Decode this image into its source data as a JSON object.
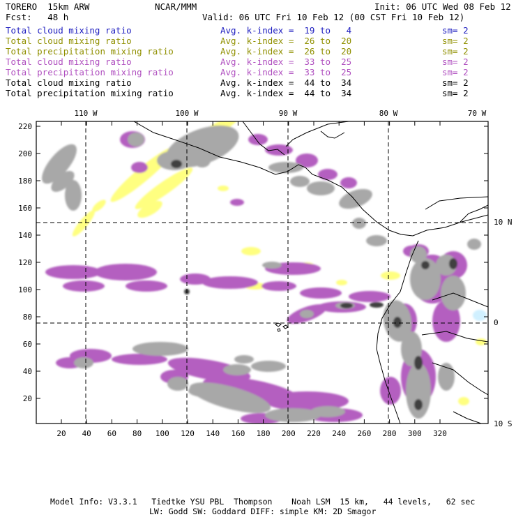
{
  "header": {
    "model": "TORERO  15km ARW",
    "org": "NCAR/MMM",
    "init": "Init: 06 UTC Wed 08 Feb 12",
    "fcst_label": "Fcst:   48 h",
    "valid": "Valid: 06 UTC Fri 10 Feb 12 (00 CST Fri 10 Feb 12)"
  },
  "legend": [
    {
      "field": "Total cloud mixing ratio",
      "kindex": "Avg. k-index =  19 to   4",
      "sm": "sm= 2",
      "color": "#2020c0"
    },
    {
      "field": "Total cloud mixing ratio",
      "kindex": "Avg. k-index =  26 to  20",
      "sm": "sm= 2",
      "color": "#909000"
    },
    {
      "field": "Total precipitation mixing ratio",
      "kindex": "Avg. k-index =  26 to  20",
      "sm": "sm= 2",
      "color": "#909000"
    },
    {
      "field": "Total cloud mixing ratio",
      "kindex": "Avg. k-index =  33 to  25",
      "sm": "sm= 2",
      "color": "#b050c0"
    },
    {
      "field": "Total precipitation mixing ratio",
      "kindex": "Avg. k-index =  33 to  25",
      "sm": "sm= 2",
      "color": "#b050c0"
    },
    {
      "field": "Total cloud mixing ratio",
      "kindex": "Avg. k-index =  44 to  34",
      "sm": "sm= 2",
      "color": "#000000"
    },
    {
      "field": "Total precipitation mixing ratio",
      "kindex": "Avg. k-index =  44 to  34",
      "sm": "sm= 2",
      "color": "#000000"
    }
  ],
  "map": {
    "lon_labels": [
      "110 W",
      "100 W",
      "90 W",
      "80 W",
      "70 W"
    ],
    "lat_labels": [
      "10 N",
      "0",
      "10 S"
    ],
    "y_ticks": [
      "220",
      "200",
      "180",
      "160",
      "140",
      "120",
      "100",
      "80",
      "60",
      "40",
      "20"
    ],
    "x_ticks": [
      "20",
      "40",
      "60",
      "80",
      "100",
      "120",
      "140",
      "160",
      "180",
      "200",
      "220",
      "240",
      "260",
      "280",
      "300",
      "320"
    ],
    "colors": {
      "yellow": "#ffff80",
      "purple": "#b45fc0",
      "gray": "#a8a8a8",
      "dark": "#404040",
      "cyan": "#d0f0ff"
    }
  },
  "footer": {
    "line1": "Model Info: V3.3.1   Tiedtke YSU PBL  Thompson    Noah LSM  15 km,   44 levels,   62 sec",
    "line2": "LW: Godd SW: Goddard DIFF: simple KM: 2D Smagor"
  }
}
